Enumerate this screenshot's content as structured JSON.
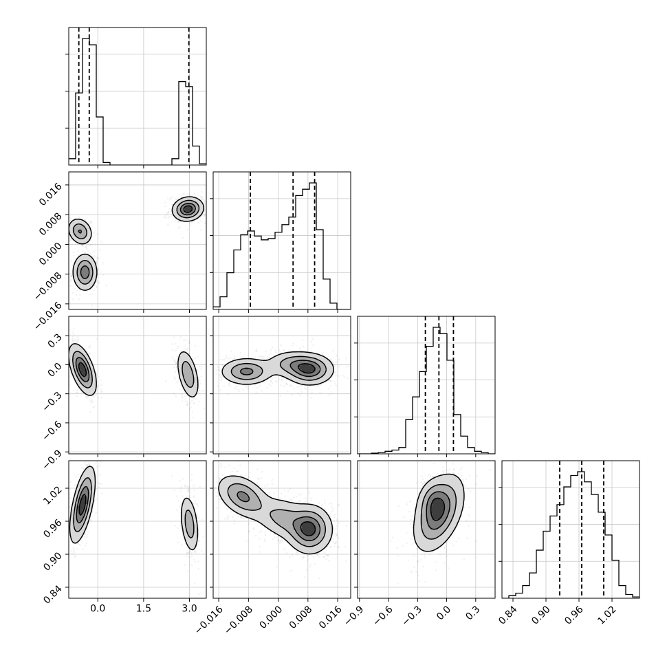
{
  "chart_data": {
    "type": "corner",
    "parameters": [
      {
        "ticks": [
          0.0,
          1.5,
          3.0
        ],
        "tick_labels": [
          "0.0",
          "1.5",
          "3.0"
        ],
        "range": [
          -0.95,
          3.55
        ],
        "quantiles": [
          -0.62,
          -0.28,
          2.98
        ],
        "histogram": {
          "edges": [
            -0.95,
            -0.725,
            -0.5,
            -0.275,
            -0.05,
            0.175,
            0.4,
            0.625,
            0.85,
            1.075,
            1.3,
            1.525,
            1.75,
            1.975,
            2.2,
            2.425,
            2.65,
            2.875,
            3.1,
            3.325,
            3.55
          ],
          "counts": [
            0.05,
            0.57,
            1.0,
            0.95,
            0.38,
            0.02,
            0.0,
            0.0,
            0.0,
            0.0,
            0.0,
            0.0,
            0.0,
            0.0,
            0.0,
            0.05,
            0.66,
            0.62,
            0.15,
            0.01
          ]
        }
      },
      {
        "ticks": [
          -0.016,
          -0.008,
          0.0,
          0.008,
          0.016
        ],
        "tick_labels": [
          "−0.016",
          "−0.008",
          "0.000",
          "0.008",
          "0.016"
        ],
        "range": [
          -0.0175,
          0.0195
        ],
        "quantiles": [
          -0.0075,
          0.004,
          0.0098
        ],
        "histogram": {
          "edges": [
            -0.0175,
            -0.01565,
            -0.0138,
            -0.01195,
            -0.0101,
            -0.00825,
            -0.0064,
            -0.00455,
            -0.0027,
            -0.00085,
            0.001,
            0.00285,
            0.0047,
            0.00655,
            0.0084,
            0.01025,
            0.0121,
            0.01395,
            0.0158,
            0.01765,
            0.0195
          ],
          "counts": [
            0.02,
            0.1,
            0.29,
            0.47,
            0.59,
            0.62,
            0.58,
            0.55,
            0.56,
            0.61,
            0.67,
            0.73,
            0.9,
            0.95,
            1.0,
            0.63,
            0.24,
            0.05,
            0.0,
            0.0
          ]
        }
      },
      {
        "ticks": [
          -0.9,
          -0.6,
          -0.3,
          0.0,
          0.3
        ],
        "tick_labels": [
          "−0.9",
          "−0.6",
          "−0.3",
          "0.0",
          "0.3"
        ],
        "range": [
          -0.92,
          0.5
        ],
        "quantiles": [
          -0.22,
          -0.08,
          0.07
        ],
        "histogram": {
          "edges": [
            -0.92,
            -0.849,
            -0.778,
            -0.707,
            -0.636,
            -0.565,
            -0.494,
            -0.423,
            -0.352,
            -0.281,
            -0.21,
            -0.139,
            -0.068,
            0.003,
            0.074,
            0.145,
            0.216,
            0.287,
            0.358,
            0.429,
            0.5
          ],
          "counts": [
            0.0,
            0.0,
            0.005,
            0.01,
            0.02,
            0.03,
            0.05,
            0.27,
            0.45,
            0.65,
            0.85,
            1.0,
            0.95,
            0.74,
            0.31,
            0.14,
            0.05,
            0.02,
            0.01,
            0.0
          ]
        }
      },
      {
        "ticks": [
          0.84,
          0.9,
          0.96,
          1.02
        ],
        "tick_labels": [
          "0.84",
          "0.90",
          "0.96",
          "1.02"
        ],
        "range": [
          0.82,
          1.07
        ],
        "quantiles": [
          0.925,
          0.965,
          1.005
        ],
        "histogram": {
          "edges": [
            0.82,
            0.8325,
            0.845,
            0.8575,
            0.87,
            0.8825,
            0.895,
            0.9075,
            0.92,
            0.9325,
            0.945,
            0.9575,
            0.97,
            0.9825,
            0.995,
            1.0075,
            1.02,
            1.0325,
            1.045,
            1.0575,
            1.07
          ],
          "counts": [
            0.0,
            0.02,
            0.04,
            0.1,
            0.2,
            0.38,
            0.53,
            0.65,
            0.74,
            0.88,
            0.97,
            1.0,
            0.92,
            0.82,
            0.68,
            0.5,
            0.3,
            0.1,
            0.03,
            0.01
          ]
        }
      }
    ],
    "blobs": [
      {
        "row": 1,
        "col": 0,
        "cx": -0.58,
        "cy": 0.0035,
        "sx": 0.2,
        "sy": 0.0018,
        "rho": -0.2,
        "w": 0.45
      },
      {
        "row": 1,
        "col": 0,
        "cx": -0.42,
        "cy": -0.0075,
        "sx": 0.2,
        "sy": 0.0025,
        "rho": 0.0,
        "w": 0.55
      },
      {
        "row": 1,
        "col": 0,
        "cx": 2.95,
        "cy": 0.0095,
        "sx": 0.25,
        "sy": 0.0016,
        "rho": 0.1,
        "w": 0.7
      },
      {
        "row": 2,
        "col": 0,
        "cx": -0.5,
        "cy": -0.05,
        "sx": 0.22,
        "sy": 0.13,
        "rho": -0.55,
        "w": 1.0
      },
      {
        "row": 2,
        "col": 0,
        "cx": 2.95,
        "cy": -0.1,
        "sx": 0.18,
        "sy": 0.13,
        "rho": -0.45,
        "w": 0.6
      },
      {
        "row": 2,
        "col": 1,
        "cx": -0.0085,
        "cy": -0.07,
        "sx": 0.0035,
        "sy": 0.07,
        "rho": 0.0,
        "w": 0.8
      },
      {
        "row": 2,
        "col": 1,
        "cx": 0.0085,
        "cy": -0.05,
        "sx": 0.0032,
        "sy": 0.08,
        "rho": 0.0,
        "w": 1.0
      },
      {
        "row": 2,
        "col": 1,
        "cx": 0.0035,
        "cy": 0.01,
        "sx": 0.0035,
        "sy": 0.07,
        "rho": 0.0,
        "w": 0.5
      },
      {
        "row": 3,
        "col": 0,
        "cx": -0.5,
        "cy": 0.99,
        "sx": 0.2,
        "sy": 0.034,
        "rho": 0.6,
        "w": 1.0
      },
      {
        "row": 3,
        "col": 0,
        "cx": 3.0,
        "cy": 0.955,
        "sx": 0.15,
        "sy": 0.027,
        "rho": -0.35,
        "w": 0.55
      },
      {
        "row": 3,
        "col": 1,
        "cx": -0.0095,
        "cy": 1.005,
        "sx": 0.0035,
        "sy": 0.02,
        "rho": -0.4,
        "w": 0.75
      },
      {
        "row": 3,
        "col": 1,
        "cx": 0.0085,
        "cy": 0.945,
        "sx": 0.003,
        "sy": 0.022,
        "rho": 0.0,
        "w": 1.0
      },
      {
        "row": 3,
        "col": 1,
        "cx": 0.0015,
        "cy": 0.965,
        "sx": 0.004,
        "sy": 0.02,
        "rho": -0.3,
        "w": 0.5
      },
      {
        "row": 3,
        "col": 2,
        "cx": -0.08,
        "cy": 0.975,
        "sx": 0.13,
        "sy": 0.035,
        "rho": 0.45,
        "w": 1.0
      },
      {
        "row": 3,
        "col": 2,
        "cx": -0.15,
        "cy": 1.0,
        "sx": 0.08,
        "sy": 0.02,
        "rho": 0.2,
        "w": 0.4
      }
    ],
    "contour_levels": [
      0.12,
      0.35,
      0.62,
      0.85
    ]
  }
}
